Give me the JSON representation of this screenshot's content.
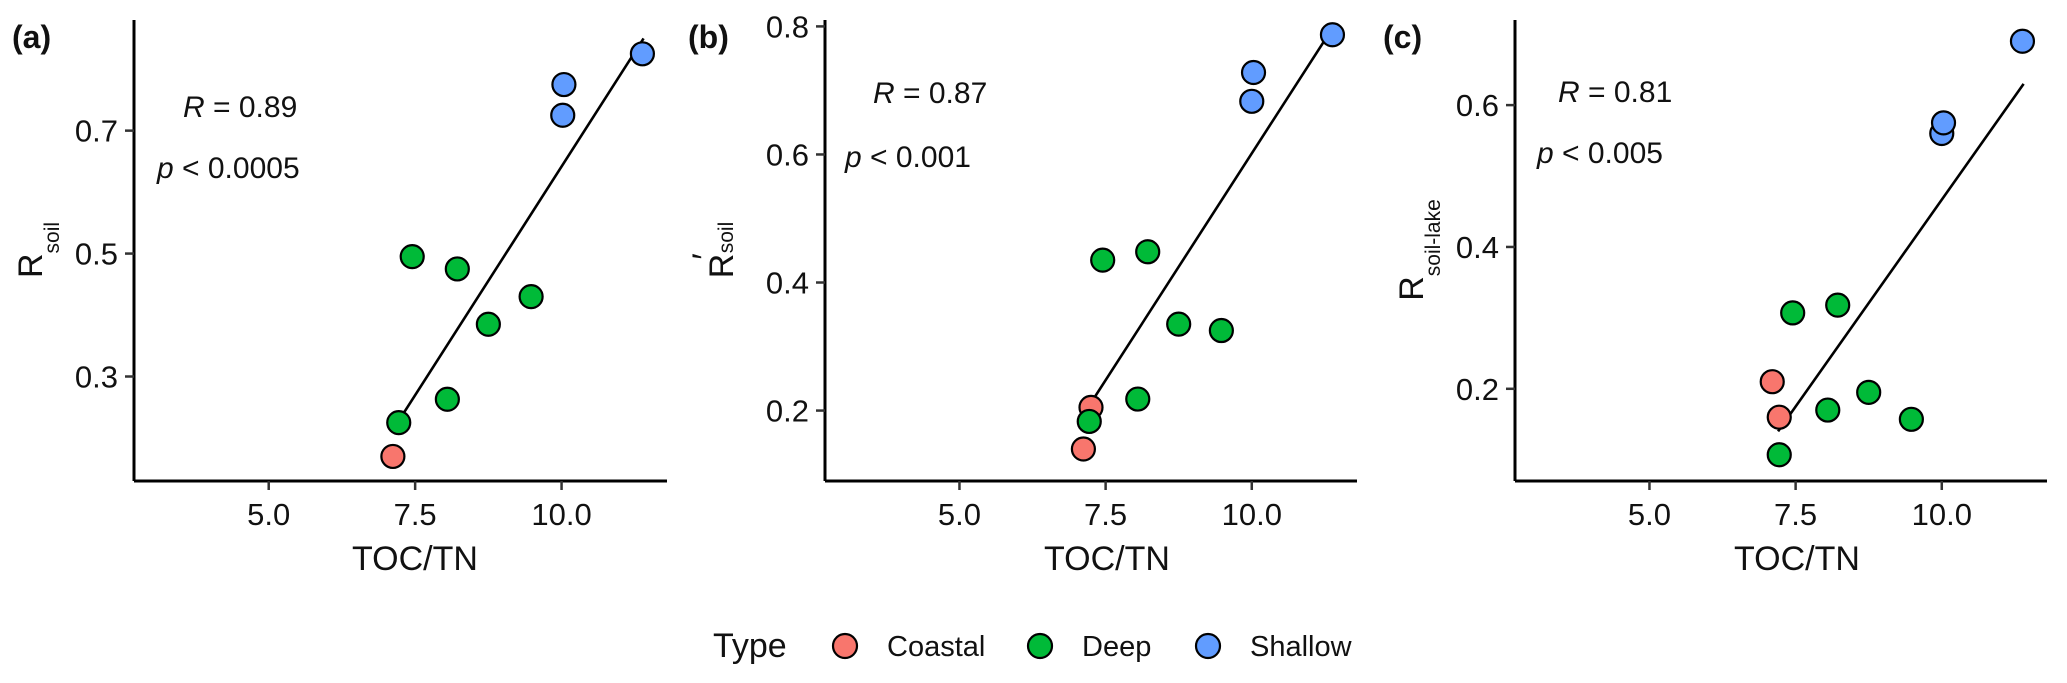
{
  "chart_data": [
    {
      "type": "scatter",
      "panel_label": "(a)",
      "xlabel": "TOC/TN",
      "ylabel": {
        "main": "R",
        "sub": "soil",
        "prime": ""
      },
      "xlim": [
        2.7,
        11.8
      ],
      "ylim": [
        0.13,
        0.88
      ],
      "xticks": [
        "5.0",
        "7.5",
        "10.0"
      ],
      "yticks": [
        "0.3",
        "0.5",
        "0.7"
      ],
      "stat_r": {
        "symbol": "R",
        "text": " = 0.89"
      },
      "stat_p": {
        "symbol": "p",
        "text": " < 0.0005"
      },
      "fit_line": {
        "x": [
          7.2,
          11.4
        ],
        "y": [
          0.225,
          0.85
        ]
      },
      "points": [
        {
          "x": 7.12,
          "y": 0.17,
          "type": "Coastal"
        },
        {
          "x": 7.22,
          "y": 0.225,
          "type": "Deep"
        },
        {
          "x": 7.45,
          "y": 0.495,
          "type": "Deep"
        },
        {
          "x": 8.05,
          "y": 0.263,
          "type": "Deep"
        },
        {
          "x": 8.22,
          "y": 0.475,
          "type": "Deep"
        },
        {
          "x": 8.75,
          "y": 0.385,
          "type": "Deep"
        },
        {
          "x": 9.48,
          "y": 0.43,
          "type": "Deep"
        },
        {
          "x": 10.02,
          "y": 0.725,
          "type": "Shallow"
        },
        {
          "x": 10.04,
          "y": 0.775,
          "type": "Shallow"
        },
        {
          "x": 11.38,
          "y": 0.825,
          "type": "Shallow"
        }
      ]
    },
    {
      "type": "scatter",
      "panel_label": "(b)",
      "xlabel": "TOC/TN",
      "ylabel": {
        "main": "R",
        "sub": "soil",
        "prime": "′"
      },
      "xlim": [
        2.7,
        11.8
      ],
      "ylim": [
        0.09,
        0.81
      ],
      "xticks": [
        "5.0",
        "7.5",
        "10.0"
      ],
      "yticks": [
        "0.2",
        "0.4",
        "0.6",
        "0.8"
      ],
      "stat_r": {
        "symbol": "R",
        "text": " = 0.87"
      },
      "stat_p": {
        "symbol": "p",
        "text": " < 0.001"
      },
      "fit_line": {
        "x": [
          7.2,
          11.4
        ],
        "y": [
          0.205,
          0.8
        ]
      },
      "points": [
        {
          "x": 7.12,
          "y": 0.14,
          "type": "Coastal"
        },
        {
          "x": 7.25,
          "y": 0.205,
          "type": "Coastal"
        },
        {
          "x": 7.22,
          "y": 0.183,
          "type": "Deep"
        },
        {
          "x": 7.45,
          "y": 0.435,
          "type": "Deep"
        },
        {
          "x": 8.05,
          "y": 0.218,
          "type": "Deep"
        },
        {
          "x": 8.22,
          "y": 0.448,
          "type": "Deep"
        },
        {
          "x": 8.75,
          "y": 0.335,
          "type": "Deep"
        },
        {
          "x": 9.48,
          "y": 0.325,
          "type": "Deep"
        },
        {
          "x": 10.0,
          "y": 0.683,
          "type": "Shallow"
        },
        {
          "x": 10.03,
          "y": 0.728,
          "type": "Shallow"
        },
        {
          "x": 11.38,
          "y": 0.787,
          "type": "Shallow"
        }
      ]
    },
    {
      "type": "scatter",
      "panel_label": "(c)",
      "xlabel": "TOC/TN",
      "ylabel": {
        "main": "R",
        "sub": "soil-lake",
        "prime": ""
      },
      "xlim": [
        2.7,
        11.8
      ],
      "ylim": [
        0.07,
        0.72
      ],
      "xticks": [
        "5.0",
        "7.5",
        "10.0"
      ],
      "yticks": [
        "0.2",
        "0.4",
        "0.6"
      ],
      "stat_r": {
        "symbol": "R",
        "text": " = 0.81"
      },
      "stat_p": {
        "symbol": "p",
        "text": " < 0.005"
      },
      "fit_line": {
        "x": [
          7.2,
          11.4
        ],
        "y": [
          0.14,
          0.63
        ]
      },
      "points": [
        {
          "x": 7.1,
          "y": 0.21,
          "type": "Coastal"
        },
        {
          "x": 7.22,
          "y": 0.16,
          "type": "Coastal"
        },
        {
          "x": 7.22,
          "y": 0.107,
          "type": "Deep"
        },
        {
          "x": 7.45,
          "y": 0.307,
          "type": "Deep"
        },
        {
          "x": 8.05,
          "y": 0.17,
          "type": "Deep"
        },
        {
          "x": 8.22,
          "y": 0.318,
          "type": "Deep"
        },
        {
          "x": 8.75,
          "y": 0.195,
          "type": "Deep"
        },
        {
          "x": 9.48,
          "y": 0.157,
          "type": "Deep"
        },
        {
          "x": 10.0,
          "y": 0.56,
          "type": "Shallow"
        },
        {
          "x": 10.03,
          "y": 0.575,
          "type": "Shallow"
        },
        {
          "x": 11.38,
          "y": 0.69,
          "type": "Shallow"
        }
      ]
    }
  ],
  "legend": {
    "title": "Type",
    "entries": [
      {
        "label": "Coastal",
        "color": "#F8766D"
      },
      {
        "label": "Deep",
        "color": "#00BA38"
      },
      {
        "label": "Shallow",
        "color": "#619CFF"
      }
    ]
  }
}
